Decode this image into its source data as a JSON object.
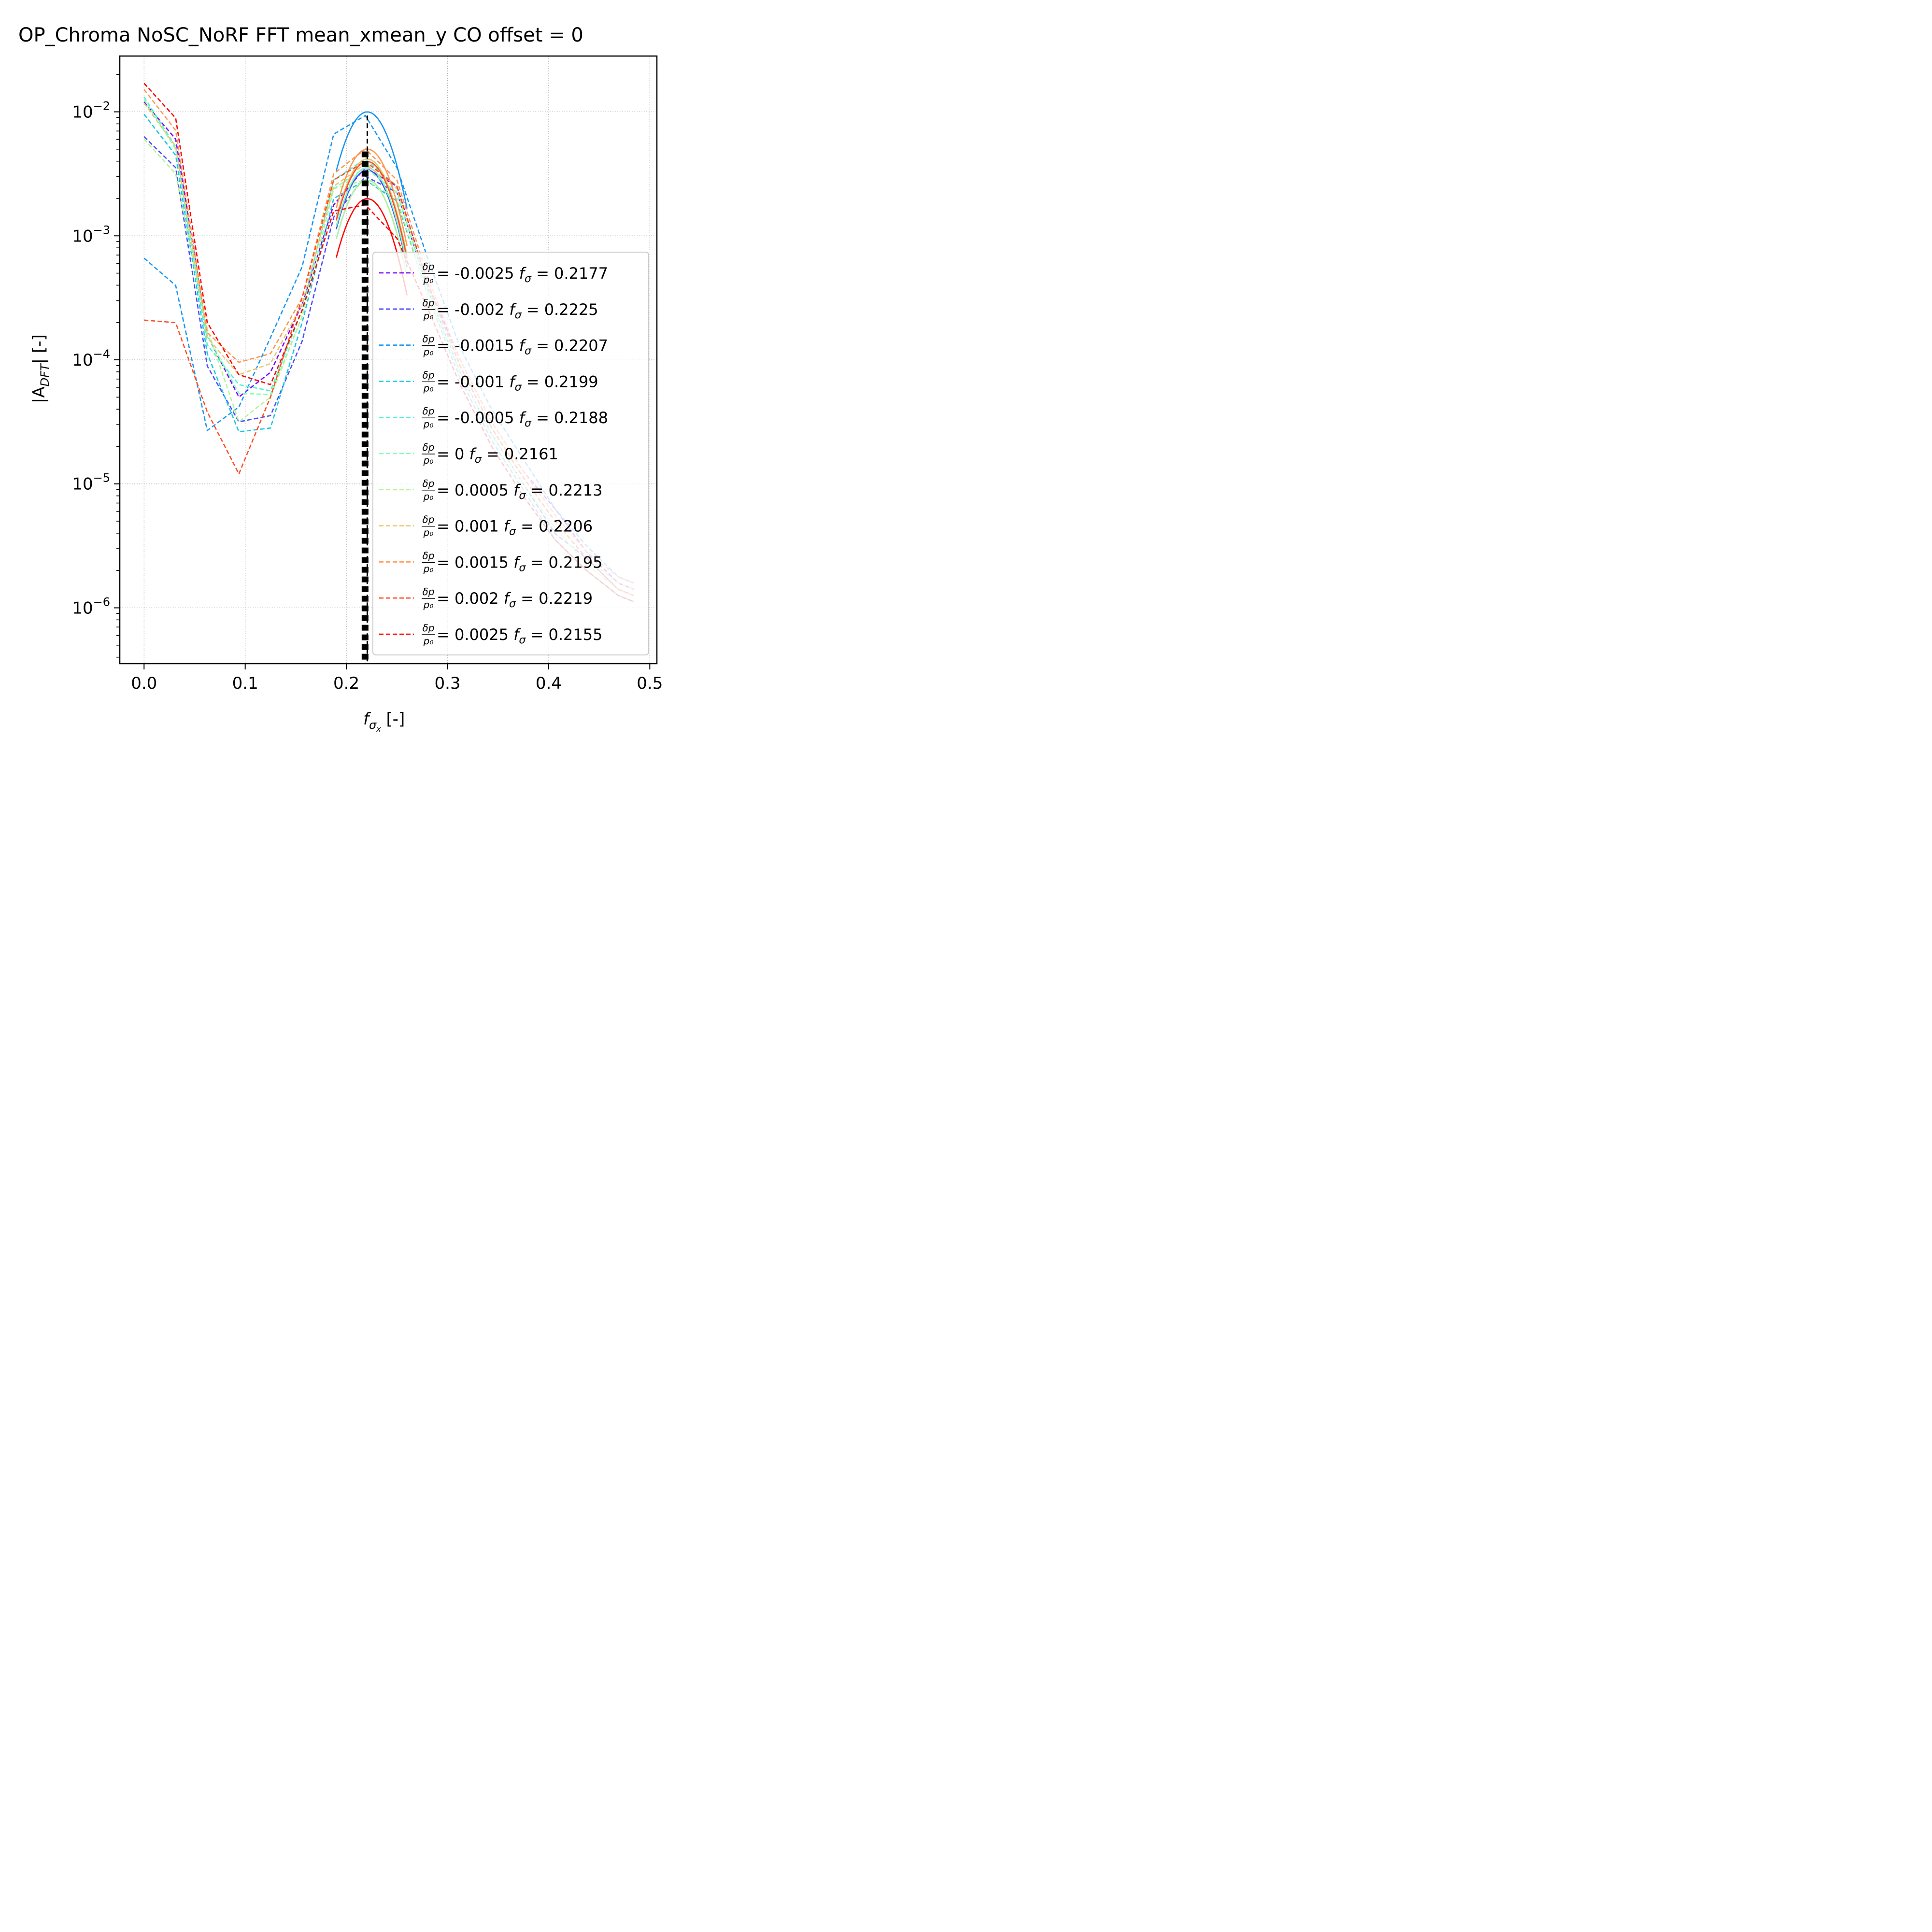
{
  "chart_data": {
    "type": "line",
    "title": "OP_Chroma NoSC_NoRF FFT mean_xmean_y CO offset = 0",
    "xlabel": "f",
    "xlabel_sub": "σ",
    "xlabel_subsub": "x",
    "xlabel_unit": " [-]",
    "ylabel_prefix": "|A",
    "ylabel_sub": "DFT",
    "ylabel_suffix": "| [-]",
    "xlim": [
      -0.024,
      0.507
    ],
    "ylim_log10": [
      -6.45,
      -1.55
    ],
    "y_scale": "log",
    "grid": true,
    "legend_position": "lower right",
    "x_ticks": [
      {
        "value": 0.0,
        "label": "0.0"
      },
      {
        "value": 0.1,
        "label": "0.1"
      },
      {
        "value": 0.2,
        "label": "0.2"
      },
      {
        "value": 0.3,
        "label": "0.3"
      },
      {
        "value": 0.4,
        "label": "0.4"
      },
      {
        "value": 0.5,
        "label": "0.5"
      }
    ],
    "y_ticks": [
      {
        "exp": -2,
        "base": "10",
        "sup": "−2"
      },
      {
        "exp": -3,
        "base": "10",
        "sup": "−3"
      },
      {
        "exp": -4,
        "base": "10",
        "sup": "−4"
      },
      {
        "exp": -5,
        "base": "10",
        "sup": "−5"
      },
      {
        "exp": -6,
        "base": "10",
        "sup": "−6"
      }
    ],
    "vertical_markers": [
      {
        "x": 0.2207,
        "y_log10_top": -2.03,
        "style": "dashed-thin",
        "color": "#000000"
      },
      {
        "x": 0.2185,
        "y_log10_top": -2.32,
        "style": "dotted-thick",
        "color": "#000000"
      }
    ],
    "fft_x": [
      0.0,
      0.03125,
      0.0625,
      0.09375,
      0.125,
      0.15625,
      0.1875,
      0.21875,
      0.25,
      0.28125,
      0.3125,
      0.34375,
      0.375,
      0.40625,
      0.4375,
      0.46875,
      0.484
    ],
    "series": [
      {
        "label": "-0.0025",
        "f_sigma": "0.2177",
        "color": "#8000ff",
        "fft_log10": [
          -1.92,
          -2.22,
          -3.8,
          -4.3,
          -4.1,
          -3.55,
          -2.75,
          -2.45,
          -2.6,
          -3.4,
          -4.0,
          -4.5,
          -4.9,
          -5.2,
          -5.55,
          -5.8,
          -5.85
        ],
        "peak_log10": -2.45
      },
      {
        "label": "-0.002",
        "f_sigma": "0.2225",
        "color": "#4c4cfc",
        "fft_log10": [
          -2.2,
          -2.45,
          -4.05,
          -4.5,
          -4.45,
          -3.85,
          -2.85,
          -2.52,
          -2.65,
          -3.45,
          -4.1,
          -4.6,
          -5.0,
          -5.4,
          -5.6,
          -5.85,
          -5.9
        ],
        "peak_log10": -2.47
      },
      {
        "label": "-0.0015",
        "f_sigma": "0.2207",
        "color": "#1996f3",
        "fft_log10": [
          -3.18,
          -3.4,
          -4.57,
          -4.38,
          -3.82,
          -3.25,
          -2.18,
          -2.03,
          -2.45,
          -3.2,
          -3.9,
          -4.4,
          -4.8,
          -5.2,
          -5.5,
          -5.75,
          -5.8
        ],
        "peak_log10": -2.0
      },
      {
        "label": "-0.001",
        "f_sigma": "0.2199",
        "color": "#1ac7e0",
        "fft_log10": [
          -2.02,
          -2.35,
          -3.95,
          -4.58,
          -4.55,
          -3.7,
          -2.7,
          -2.55,
          -2.72,
          -3.5,
          -4.15,
          -4.65,
          -5.05,
          -5.45,
          -5.7,
          -5.9,
          -5.95
        ],
        "peak_log10": -2.55
      },
      {
        "label": "-0.0005",
        "f_sigma": "0.2188",
        "color": "#4df3ce",
        "fft_log10": [
          -1.88,
          -2.28,
          -3.88,
          -4.2,
          -4.25,
          -3.6,
          -2.55,
          -2.38,
          -2.6,
          -3.42,
          -4.05,
          -4.55,
          -4.95,
          -5.3,
          -5.6,
          -5.85,
          -5.9
        ],
        "peak_log10": -2.38
      },
      {
        "label": "0",
        "f_sigma": "0.2161",
        "color": "#80ffb4",
        "fft_log10": [
          -1.9,
          -2.3,
          -3.8,
          -4.27,
          -4.28,
          -3.65,
          -2.62,
          -2.45,
          -2.65,
          -3.45,
          -4.1,
          -4.6,
          -5.0,
          -5.35,
          -5.65,
          -5.85,
          -5.9
        ],
        "peak_log10": -2.45
      },
      {
        "label": "0.0005",
        "f_sigma": "0.2213",
        "color": "#b3f396",
        "fft_log10": [
          -2.22,
          -2.5,
          -3.75,
          -4.5,
          -4.3,
          -3.65,
          -2.62,
          -2.55,
          -2.7,
          -3.5,
          -4.1,
          -4.6,
          -5.0,
          -5.35,
          -5.65,
          -5.85,
          -5.9
        ],
        "peak_log10": -2.55
      },
      {
        "label": "0.001",
        "f_sigma": "0.2206",
        "color": "#e6c86e",
        "fft_log10": [
          -1.93,
          -2.28,
          -3.82,
          -4.12,
          -4.03,
          -3.55,
          -2.6,
          -2.42,
          -2.62,
          -3.4,
          -4.05,
          -4.55,
          -4.95,
          -5.3,
          -5.6,
          -5.8,
          -5.85
        ],
        "peak_log10": -2.38
      },
      {
        "label": "0.0015",
        "f_sigma": "0.2195",
        "color": "#ff9650",
        "fft_log10": [
          -1.82,
          -2.15,
          -3.78,
          -4.02,
          -3.95,
          -3.5,
          -2.5,
          -2.3,
          -2.55,
          -3.35,
          -4.0,
          -4.5,
          -4.9,
          -5.25,
          -5.55,
          -5.75,
          -5.8
        ],
        "peak_log10": -2.3
      },
      {
        "label": "0.002",
        "f_sigma": "0.2219",
        "color": "#ff4d28",
        "fft_log10": [
          -3.68,
          -3.7,
          -4.42,
          -4.92,
          -4.3,
          -3.5,
          -2.55,
          -2.4,
          -2.6,
          -3.4,
          -4.05,
          -4.55,
          -4.95,
          -5.3,
          -5.6,
          -5.85,
          -5.9
        ],
        "peak_log10": -2.4
      },
      {
        "label": "0.0025",
        "f_sigma": "0.2155",
        "color": "#ff0000",
        "fft_log10": [
          -1.77,
          -2.05,
          -3.7,
          -4.12,
          -4.2,
          -3.6,
          -2.8,
          -2.75,
          -3.02,
          -3.6,
          -4.2,
          -4.7,
          -5.1,
          -5.45,
          -5.7,
          -5.9,
          -5.95
        ],
        "peak_log10": -2.7
      }
    ]
  }
}
